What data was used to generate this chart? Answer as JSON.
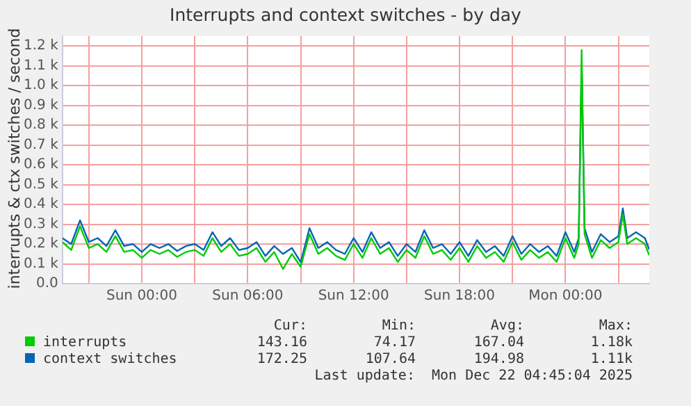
{
  "chart_data": {
    "type": "line",
    "title": "Interrupts and context switches - by day",
    "ylabel": "interrupts & ctx switches / second",
    "x": [
      "2025-12-20T19:30",
      "2025-12-20T20:00",
      "2025-12-20T20:30",
      "2025-12-20T21:00",
      "2025-12-20T21:30",
      "2025-12-20T22:00",
      "2025-12-20T22:30",
      "2025-12-20T23:00",
      "2025-12-20T23:30",
      "2025-12-21T00:00",
      "2025-12-21T00:30",
      "2025-12-21T01:00",
      "2025-12-21T01:30",
      "2025-12-21T02:00",
      "2025-12-21T02:30",
      "2025-12-21T03:00",
      "2025-12-21T03:30",
      "2025-12-21T04:00",
      "2025-12-21T04:30",
      "2025-12-21T05:00",
      "2025-12-21T05:30",
      "2025-12-21T06:00",
      "2025-12-21T06:30",
      "2025-12-21T07:00",
      "2025-12-21T07:30",
      "2025-12-21T08:00",
      "2025-12-21T08:30",
      "2025-12-21T09:00",
      "2025-12-21T09:30",
      "2025-12-21T10:00",
      "2025-12-21T10:30",
      "2025-12-21T11:00",
      "2025-12-21T11:30",
      "2025-12-21T12:00",
      "2025-12-21T12:30",
      "2025-12-21T13:00",
      "2025-12-21T13:30",
      "2025-12-21T14:00",
      "2025-12-21T14:30",
      "2025-12-21T15:00",
      "2025-12-21T15:30",
      "2025-12-21T16:00",
      "2025-12-21T16:30",
      "2025-12-21T17:00",
      "2025-12-21T17:30",
      "2025-12-21T18:00",
      "2025-12-21T18:30",
      "2025-12-21T19:00",
      "2025-12-21T19:30",
      "2025-12-21T20:00",
      "2025-12-21T20:30",
      "2025-12-21T21:00",
      "2025-12-21T21:30",
      "2025-12-21T22:00",
      "2025-12-21T22:30",
      "2025-12-21T23:00",
      "2025-12-21T23:30",
      "2025-12-22T00:00",
      "2025-12-22T00:30",
      "2025-12-22T00:45",
      "2025-12-22T00:55",
      "2025-12-22T01:05",
      "2025-12-22T01:30",
      "2025-12-22T02:00",
      "2025-12-22T02:30",
      "2025-12-22T03:00",
      "2025-12-22T03:15",
      "2025-12-22T03:30",
      "2025-12-22T04:00",
      "2025-12-22T04:30",
      "2025-12-22T04:45"
    ],
    "series": [
      {
        "name": "interrupts",
        "color": "#00cc00",
        "values": [
          210,
          170,
          290,
          180,
          200,
          160,
          240,
          160,
          170,
          130,
          170,
          150,
          170,
          135,
          160,
          170,
          140,
          230,
          160,
          200,
          140,
          150,
          180,
          110,
          160,
          74,
          150,
          85,
          250,
          150,
          180,
          140,
          120,
          200,
          130,
          230,
          150,
          180,
          110,
          170,
          130,
          240,
          150,
          170,
          120,
          180,
          110,
          190,
          130,
          160,
          110,
          210,
          120,
          170,
          130,
          160,
          110,
          230,
          130,
          200,
          1180,
          250,
          130,
          220,
          180,
          210,
          350,
          200,
          230,
          200,
          143
        ]
      },
      {
        "name": "context switches",
        "color": "#0066b3",
        "values": [
          230,
          200,
          320,
          210,
          230,
          190,
          270,
          190,
          200,
          160,
          200,
          180,
          200,
          165,
          190,
          200,
          170,
          260,
          190,
          230,
          170,
          180,
          210,
          140,
          190,
          150,
          180,
          108,
          280,
          180,
          210,
          170,
          150,
          230,
          160,
          260,
          180,
          210,
          140,
          200,
          160,
          270,
          180,
          200,
          150,
          210,
          140,
          220,
          160,
          190,
          140,
          240,
          150,
          200,
          160,
          190,
          140,
          260,
          160,
          230,
          1110,
          280,
          160,
          250,
          210,
          240,
          380,
          230,
          260,
          230,
          172
        ]
      }
    ],
    "xlim": [
      "2025-12-20T19:30",
      "2025-12-22T04:45"
    ],
    "xticks": [
      {
        "value": "2025-12-20T21:00",
        "label": null
      },
      {
        "value": "2025-12-21T00:00",
        "label": "Sun 00:00"
      },
      {
        "value": "2025-12-21T03:00",
        "label": null
      },
      {
        "value": "2025-12-21T06:00",
        "label": "Sun 06:00"
      },
      {
        "value": "2025-12-21T09:00",
        "label": null
      },
      {
        "value": "2025-12-21T12:00",
        "label": "Sun 12:00"
      },
      {
        "value": "2025-12-21T15:00",
        "label": null
      },
      {
        "value": "2025-12-21T18:00",
        "label": "Sun 18:00"
      },
      {
        "value": "2025-12-21T21:00",
        "label": null
      },
      {
        "value": "2025-12-22T00:00",
        "label": "Mon 00:00"
      },
      {
        "value": "2025-12-22T03:00",
        "label": null
      }
    ],
    "ylim": [
      0,
      1250
    ],
    "yticks": [
      {
        "value": 0,
        "label": "0.0"
      },
      {
        "value": 100,
        "label": "0.1 k"
      },
      {
        "value": 200,
        "label": "0.2 k"
      },
      {
        "value": 300,
        "label": "0.3 k"
      },
      {
        "value": 400,
        "label": "0.4 k"
      },
      {
        "value": 500,
        "label": "0.5 k"
      },
      {
        "value": 600,
        "label": "0.6 k"
      },
      {
        "value": 700,
        "label": "0.7 k"
      },
      {
        "value": 800,
        "label": "0.8 k"
      },
      {
        "value": 900,
        "label": "0.9 k"
      },
      {
        "value": 1000,
        "label": "1.0 k"
      },
      {
        "value": 1100,
        "label": "1.1 k"
      },
      {
        "value": 1200,
        "label": "1.2 k"
      }
    ],
    "grid": true,
    "legend": "bottom",
    "marker": "none",
    "line_style": "solid",
    "annotations": [
      "Cur:",
      "Min:",
      "Avg:",
      "Max:",
      "143.16",
      "74.17",
      "167.04",
      "1.18k",
      "172.25",
      "107.64",
      "194.98",
      "1.11k",
      "Last update:  Mon Dec 22 04:45:04 2025"
    ]
  }
}
